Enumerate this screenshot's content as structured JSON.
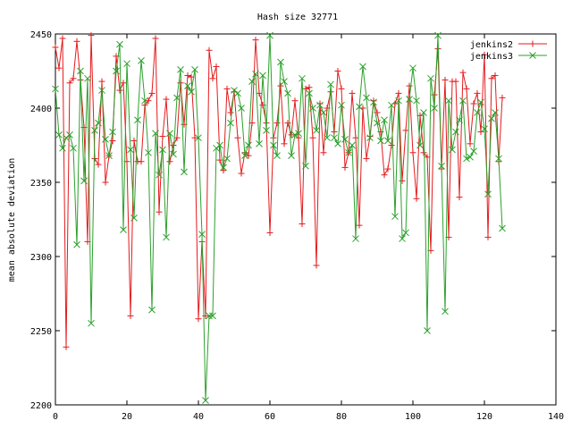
{
  "chart_data": {
    "type": "line",
    "title": "Hash size 32771",
    "xlabel": "",
    "ylabel": "mean absolute deviation",
    "xlim": [
      0,
      140
    ],
    "ylim": [
      2200,
      2450
    ],
    "xticks": [
      0,
      20,
      40,
      60,
      80,
      100,
      120,
      140
    ],
    "yticks": [
      2200,
      2250,
      2300,
      2350,
      2400,
      2450
    ],
    "grid": false,
    "legend_position": "top-right",
    "series": [
      {
        "name": "jenkins2",
        "color": "#e41a1c",
        "marker": "plus",
        "values": [
          2441,
          2427,
          2447,
          2239,
          2417,
          2420,
          2445,
          2419,
          2387,
          2310,
          2449,
          2366,
          2362,
          2418,
          2350,
          2368,
          2378,
          2435,
          2412,
          2417,
          2364,
          2260,
          2378,
          2364,
          2364,
          2402,
          2405,
          2410,
          2447,
          2330,
          2381,
          2406,
          2364,
          2375,
          2380,
          2417,
          2389,
          2422,
          2421,
          2380,
          2258,
          2310,
          2260,
          2439,
          2420,
          2428,
          2365,
          2358,
          2413,
          2397,
          2411,
          2380,
          2356,
          2370,
          2368,
          2390,
          2446,
          2410,
          2402,
          2390,
          2316,
          2380,
          2390,
          2415,
          2376,
          2390,
          2382,
          2405,
          2380,
          2322,
          2413,
          2414,
          2380,
          2294,
          2403,
          2370,
          2400,
          2411,
          2384,
          2425,
          2413,
          2360,
          2370,
          2410,
          2380,
          2321,
          2400,
          2366,
          2381,
          2405,
          2397,
          2384,
          2355,
          2359,
          2375,
          2403,
          2410,
          2351,
          2385,
          2415,
          2370,
          2339,
          2395,
          2370,
          2367,
          2304,
          2409,
          2440,
          2359,
          2419,
          2313,
          2418,
          2418,
          2340,
          2424,
          2413,
          2376,
          2403,
          2410,
          2384,
          2436,
          2313,
          2420,
          2422,
          2364,
          2407
        ]
      },
      {
        "name": "jenkins3",
        "color": "#2ca02c",
        "marker": "cross",
        "values": [
          2413,
          2382,
          2373,
          2380,
          2382,
          2373,
          2308,
          2425,
          2351,
          2420,
          2255,
          2385,
          2390,
          2412,
          2379,
          2368,
          2384,
          2425,
          2443,
          2318,
          2430,
          2372,
          2326,
          2392,
          2432,
          2405,
          2370,
          2264,
          2383,
          2355,
          2372,
          2313,
          2383,
          2369,
          2407,
          2426,
          2357,
          2415,
          2411,
          2426,
          2380,
          2315,
          2203,
          2260,
          2260,
          2373,
          2375,
          2360,
          2366,
          2390,
          2412,
          2410,
          2400,
          2368,
          2375,
          2418,
          2423,
          2376,
          2422,
          2385,
          2449,
          2375,
          2368,
          2431,
          2418,
          2410,
          2368,
          2382,
          2383,
          2420,
          2361,
          2410,
          2400,
          2385,
          2402,
          2397,
          2380,
          2416,
          2380,
          2376,
          2402,
          2379,
          2370,
          2375,
          2312,
          2401,
          2428,
          2407,
          2380,
          2404,
          2390,
          2378,
          2392,
          2378,
          2402,
          2327,
          2405,
          2312,
          2316,
          2406,
          2427,
          2405,
          2375,
          2397,
          2250,
          2420,
          2400,
          2449,
          2361,
          2263,
          2405,
          2372,
          2384,
          2392,
          2405,
          2366,
          2367,
          2371,
          2397,
          2404,
          2386,
          2342,
          2393,
          2397,
          2366,
          2319
        ]
      }
    ]
  }
}
